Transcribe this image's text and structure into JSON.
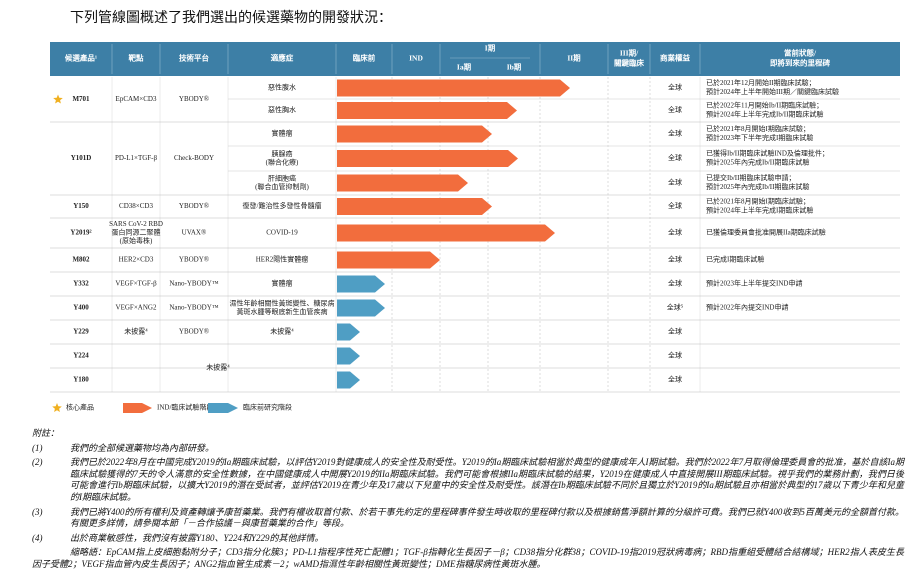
{
  "title": "下列管線圖概述了我們選出的候選藥物的開發狀況：",
  "header": {
    "candidate": "候選產品¹",
    "target": "靶點",
    "platform": "技術平台",
    "indication": "適應症",
    "preclinical": "臨床前",
    "ind": "IND",
    "phase1": "I期",
    "phase1a": "Ia期",
    "phase1b": "Ib期",
    "phase2": "II期",
    "phase3": [
      "III期/",
      "關鍵臨床"
    ],
    "rights": "商業權益",
    "status": [
      "當前狀態/",
      "即將到來的里程碑"
    ]
  },
  "products": [
    {
      "name": "M701",
      "core": true,
      "target": [
        "EpCAM×CD3"
      ],
      "platform": [
        "YBODY®"
      ],
      "rows": [
        {
          "indication": [
            "惡性腹水"
          ],
          "rights": "全球",
          "status": [
            "已於2021年12月開始II期臨床試驗；",
            "預計2024年上半年開始III期／關鍵臨床試驗"
          ]
        },
        {
          "indication": [
            "惡性胸水"
          ],
          "rights": "全球",
          "status": [
            "已於2022年11月開始Ib/II期臨床試驗；",
            "預計2024年上半年完成Ib/II期臨床試驗"
          ]
        }
      ]
    },
    {
      "name": "Y101D",
      "target": [
        "PD-L1×TGF-β"
      ],
      "platform": [
        "Check-BODY"
      ],
      "rows": [
        {
          "indication": [
            "實體瘤"
          ],
          "rights": "全球",
          "status": [
            "已於2021年8月開始I期臨床試驗；",
            "預計2023年下半年完成I期臨床試驗"
          ]
        },
        {
          "indication": [
            "胰腺癌",
            "(聯合化療)"
          ],
          "rights": "全球",
          "status": [
            "已獲得Ib/II期臨床試驗IND及倫理批件；",
            "預計2025年內完成Ib/II期臨床試驗"
          ]
        },
        {
          "indication": [
            "肝細胞癌",
            "(聯合血管抑制劑)"
          ],
          "rights": "全球",
          "status": [
            "已提交Ib/II期臨床試驗申請；",
            "預計2025年內完成Ib/II期臨床試驗"
          ]
        }
      ]
    },
    {
      "name": "Y150",
      "target": [
        "CD38×CD3"
      ],
      "platform": [
        "YBODY®"
      ],
      "rows": [
        {
          "indication": [
            "復發/難治性多發性骨髓瘤"
          ],
          "rights": "全球",
          "status": [
            "已於2021年8月開始I期臨床試驗；",
            "預計2024年上半年完成I期臨床試驗"
          ]
        }
      ]
    },
    {
      "name": "Y2019²",
      "target": [
        "SARS CoV-2 RBD",
        "蛋白同源二聚體",
        "(原始毒株)"
      ],
      "platform": [
        "UVAX®"
      ],
      "rows": [
        {
          "indication": [
            "COVID-19"
          ],
          "rights": "全球",
          "status": [
            "已獲倫理委員會批准開展IIa期臨床試驗"
          ]
        }
      ]
    },
    {
      "name": "M802",
      "target": [
        "HER2×CD3"
      ],
      "platform": [
        "YBODY®"
      ],
      "rows": [
        {
          "indication": [
            "HER2陽性實體瘤"
          ],
          "rights": "全球",
          "status": [
            "已完成I期臨床試驗"
          ]
        }
      ]
    },
    {
      "name": "Y332",
      "target": [
        "VEGF×TGF-β"
      ],
      "platform": [
        "Nano-YBODY™"
      ],
      "rows": [
        {
          "indication": [
            "實體瘤"
          ],
          "rights": "全球",
          "status": [
            "預計2023年上半年提交IND申請"
          ]
        }
      ]
    },
    {
      "name": "Y400",
      "target": [
        "VEGF×ANG2"
      ],
      "platform": [
        "Nano-YBODY™"
      ],
      "rows": [
        {
          "indication": [
            "濕性年齡相關性黃斑變性、糖尿病",
            "黃斑水腫等眼底新生血管疾病"
          ],
          "rights": "全球⁵",
          "status": [
            "預計2022年內提交IND申請"
          ]
        }
      ]
    },
    {
      "name": "Y229",
      "target": [
        "未披露⁴"
      ],
      "platform": [
        "YBODY®"
      ],
      "rows": [
        {
          "indication": [
            "未披露⁴"
          ],
          "rights": "全球"
        }
      ]
    },
    {
      "name": "Y224",
      "rows": [
        {
          "rights": "全球"
        }
      ]
    },
    {
      "name": "Y180",
      "rows": [
        {
          "rights": "全球"
        }
      ]
    }
  ],
  "undisclosed_group": "未披露⁴",
  "legend": {
    "core": "核心產品",
    "clinical": "IND/臨床試驗階段",
    "preclinical": "臨床前研究階段"
  },
  "notes": {
    "heading": "附註：",
    "items": [
      {
        "label": "(1)",
        "text": "我們的全部候選藥物均為內部研發。"
      },
      {
        "label": "(2)",
        "text": "我們已於2022年8月在中國完成Y2019的Ia期臨床試驗，以評估Y2019對健康成人的安全性及耐受性。Y2019的Ia期臨床試驗相當於典型的健康成年人I期試驗。我們於2022年7月取得倫理委員會的批准，基於自該Ia期臨床試驗獲得的7天的令人滿意的安全性數據，在中國健康成人中開展Y2019的IIa期臨床試驗。我們可能會根據IIa期臨床試驗的結果，Y2019在健康成人中直接開展III期臨床試驗。視乎我們的業務計劃，我們日後可能會進行Ib期臨床試驗，以擴大Y2019的潛在受試者，並評估Y2019在青少年及17歲以下兒童中的安全性及耐受性。該潛在Ib期臨床試驗不同於且獨立於Y2019的Ia期試驗且亦相當於典型的17歲以下青少年和兒童的I期臨床試驗。"
      },
      {
        "label": "(3)",
        "text": "我們已將Y400的所有權利及資產轉讓予康哲藥業。我們有權收取首付款、於若干事先約定的里程碑事件發生時收取的里程碑付款以及根據銷售淨額計算的分級許可費。我們已就Y400收到5百萬美元的全額首付款。有關更多詳情，請參閱本節「－合作協議－與康哲藥業的合作」等段。"
      },
      {
        "label": "(4)",
        "text": "出於商業敏感性，我們沒有披露Y180、Y224和Y229的其他詳情。"
      }
    ],
    "abbreviations": "縮略語：EpCAM指上皮細胞黏附分子；CD3指分化簇3；PD-L1指程序性死亡配體1；TGF-β指轉化生長因子－β；CD38指分化群38；COVID-19指2019冠狀病毒病；RBD指重組受體結合結構域；HER2指人表皮生長因子受體2；VEGF指血管內皮生長因子；ANG2指血管生成素－2；wAMD指濕性年齡相關性黃斑變性；DME指糖尿病性黃斑水腫。"
  }
}
